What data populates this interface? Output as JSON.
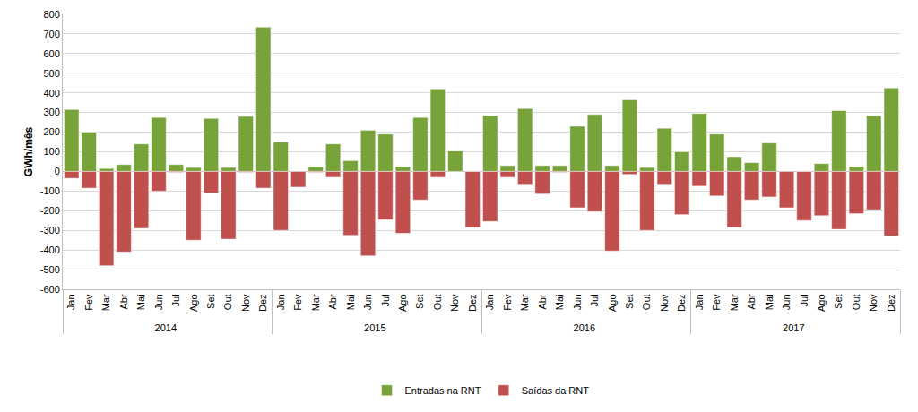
{
  "chart_data": {
    "type": "bar",
    "y_label": "GWh/mês",
    "categories": [
      [
        "2014",
        "Jan"
      ],
      [
        "2014",
        "Fev"
      ],
      [
        "2014",
        "Mar"
      ],
      [
        "2014",
        "Abr"
      ],
      [
        "2014",
        "Mai"
      ],
      [
        "2014",
        "Jun"
      ],
      [
        "2014",
        "Jul"
      ],
      [
        "2014",
        "Ago"
      ],
      [
        "2014",
        "Set"
      ],
      [
        "2014",
        "Out"
      ],
      [
        "2014",
        "Nov"
      ],
      [
        "2014",
        "Dez"
      ],
      [
        "2015",
        "Jan"
      ],
      [
        "2015",
        "Fev"
      ],
      [
        "2015",
        "Mar"
      ],
      [
        "2015",
        "Abr"
      ],
      [
        "2015",
        "Mai"
      ],
      [
        "2015",
        "Jun"
      ],
      [
        "2015",
        "Jul"
      ],
      [
        "2015",
        "Ago"
      ],
      [
        "2015",
        "Set"
      ],
      [
        "2015",
        "Out"
      ],
      [
        "2015",
        "Nov"
      ],
      [
        "2015",
        "Dez"
      ],
      [
        "2016",
        "Jan"
      ],
      [
        "2016",
        "Fev"
      ],
      [
        "2016",
        "Mar"
      ],
      [
        "2016",
        "Abr"
      ],
      [
        "2016",
        "Mai"
      ],
      [
        "2016",
        "Jun"
      ],
      [
        "2016",
        "Jul"
      ],
      [
        "2016",
        "Ago"
      ],
      [
        "2016",
        "Set"
      ],
      [
        "2016",
        "Out"
      ],
      [
        "2016",
        "Nov"
      ],
      [
        "2016",
        "Dez"
      ],
      [
        "2017",
        "Jan"
      ],
      [
        "2017",
        "Fev"
      ],
      [
        "2017",
        "Mar"
      ],
      [
        "2017",
        "Abr"
      ],
      [
        "2017",
        "Mai"
      ],
      [
        "2017",
        "Jun"
      ],
      [
        "2017",
        "Jul"
      ],
      [
        "2017",
        "Ago"
      ],
      [
        "2017",
        "Set"
      ],
      [
        "2017",
        "Out"
      ],
      [
        "2017",
        "Nov"
      ],
      [
        "2017",
        "Dez"
      ]
    ],
    "series": [
      {
        "name": "Entradas na RNT",
        "color": "#77a33a",
        "values": [
          315,
          200,
          15,
          35,
          140,
          275,
          35,
          20,
          270,
          20,
          280,
          735,
          150,
          0,
          25,
          140,
          55,
          210,
          190,
          25,
          275,
          420,
          105,
          0,
          285,
          30,
          320,
          30,
          30,
          230,
          290,
          30,
          365,
          20,
          220,
          100,
          295,
          190,
          75,
          45,
          145,
          0,
          0,
          40,
          310,
          25,
          285,
          425
        ]
      },
      {
        "name": "Saídas da RNT",
        "color": "#c0504d",
        "values": [
          -35,
          -85,
          -480,
          -410,
          -290,
          -100,
          -5,
          -350,
          -110,
          -345,
          -5,
          -85,
          -300,
          -80,
          -5,
          -30,
          -325,
          -430,
          -245,
          -315,
          -145,
          -30,
          0,
          -285,
          -255,
          -30,
          -65,
          -115,
          -5,
          -185,
          -205,
          -405,
          -15,
          -300,
          -65,
          -220,
          -75,
          -125,
          -285,
          -145,
          -130,
          -185,
          -250,
          -225,
          -295,
          -215,
          -195,
          -330
        ]
      }
    ],
    "ylim": [
      -600,
      800
    ],
    "yticks": [
      -600,
      -500,
      -400,
      -300,
      -200,
      -100,
      0,
      100,
      200,
      300,
      400,
      500,
      600,
      700,
      800
    ],
    "stacked": true,
    "grid": true,
    "legend": "bottom"
  }
}
